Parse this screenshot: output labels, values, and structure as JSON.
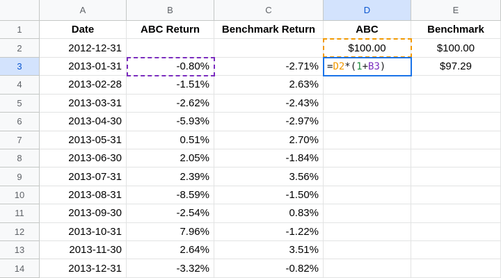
{
  "columns": [
    "A",
    "B",
    "C",
    "D",
    "E"
  ],
  "headers": {
    "date": "Date",
    "abc_return": "ABC Return",
    "benchmark_return": "Benchmark Return",
    "abc": "ABC",
    "benchmark": "Benchmark"
  },
  "rows": [
    {
      "n": "1"
    },
    {
      "n": "2",
      "date": "2012-12-31",
      "b": "",
      "c": "",
      "d": "$100.00",
      "e": "$100.00"
    },
    {
      "n": "3",
      "date": "2013-01-31",
      "b": "-0.80%",
      "c": "-2.71%",
      "d": "",
      "e": "$97.29"
    },
    {
      "n": "4",
      "date": "2013-02-28",
      "b": "-1.51%",
      "c": "2.63%",
      "d": "",
      "e": ""
    },
    {
      "n": "5",
      "date": "2013-03-31",
      "b": "-2.62%",
      "c": "-2.43%",
      "d": "",
      "e": ""
    },
    {
      "n": "6",
      "date": "2013-04-30",
      "b": "-5.93%",
      "c": "-2.97%",
      "d": "",
      "e": ""
    },
    {
      "n": "7",
      "date": "2013-05-31",
      "b": "0.51%",
      "c": "2.70%",
      "d": "",
      "e": ""
    },
    {
      "n": "8",
      "date": "2013-06-30",
      "b": "2.05%",
      "c": "-1.84%",
      "d": "",
      "e": ""
    },
    {
      "n": "9",
      "date": "2013-07-31",
      "b": "2.39%",
      "c": "3.56%",
      "d": "",
      "e": ""
    },
    {
      "n": "10",
      "date": "2013-08-31",
      "b": "-8.59%",
      "c": "-1.50%",
      "d": "",
      "e": ""
    },
    {
      "n": "11",
      "date": "2013-09-30",
      "b": "-2.54%",
      "c": "0.83%",
      "d": "",
      "e": ""
    },
    {
      "n": "12",
      "date": "2013-10-31",
      "b": "7.96%",
      "c": "-1.22%",
      "d": "",
      "e": ""
    },
    {
      "n": "13",
      "date": "2013-11-30",
      "b": "2.64%",
      "c": "3.51%",
      "d": "",
      "e": ""
    },
    {
      "n": "14",
      "date": "2013-12-31",
      "b": "-3.32%",
      "c": "-0.82%",
      "d": "",
      "e": ""
    }
  ],
  "active_cell": {
    "ref": "D3",
    "formula_parts": {
      "eq": "=",
      "ref1": "D2",
      "op1": "*(",
      "one": "1",
      "plus": "+",
      "ref2": "B3",
      "close": ")"
    }
  },
  "colors": {
    "ref1": "#f29900",
    "ref2": "#7b2cbf",
    "selection": "#1a73e8",
    "header_highlight": "#d3e3fd"
  }
}
